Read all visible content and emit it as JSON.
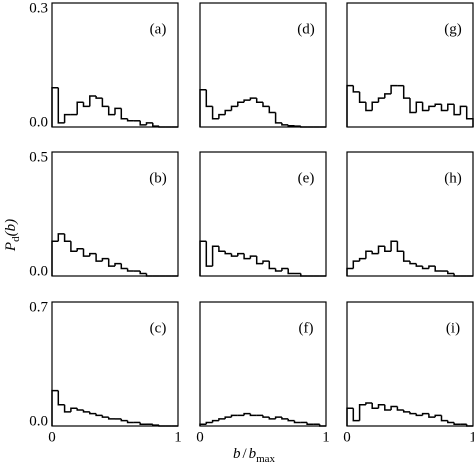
{
  "axis_labels": {
    "y": [
      "P",
      "d",
      "(b)"
    ],
    "x": [
      "b",
      "/",
      "b",
      "max"
    ]
  },
  "chart_data": [
    {
      "type": "histogram",
      "label": "(a)",
      "xlim": [
        0,
        1
      ],
      "ylim": [
        0,
        0.3
      ],
      "yticks": [
        {
          "value": 0,
          "label": "0.0"
        },
        0.3
      ],
      "bins": [
        0,
        0.05,
        0.1,
        0.15,
        0.2,
        0.25,
        0.3,
        0.35,
        0.4,
        0.45,
        0.5,
        0.55,
        0.6,
        0.65,
        0.7,
        0.75,
        0.8,
        0.85,
        0.9,
        0.95,
        1
      ],
      "values": [
        0.095,
        0.01,
        0.03,
        0.03,
        0.06,
        0.05,
        0.075,
        0.07,
        0.05,
        0.03,
        0.045,
        0.02,
        0.015,
        0.015,
        0.005,
        0.01,
        0.002,
        0,
        0,
        0
      ]
    },
    {
      "type": "histogram",
      "label": "(d)",
      "xlim": [
        0,
        1
      ],
      "ylim": [
        0,
        0.3
      ],
      "bins": [
        0,
        0.05,
        0.1,
        0.15,
        0.2,
        0.25,
        0.3,
        0.35,
        0.4,
        0.45,
        0.5,
        0.55,
        0.6,
        0.65,
        0.7,
        0.75,
        0.8,
        0.85,
        0.9,
        0.95,
        1
      ],
      "values": [
        0.09,
        0.05,
        0.02,
        0.03,
        0.04,
        0.05,
        0.06,
        0.065,
        0.07,
        0.06,
        0.05,
        0.035,
        0.01,
        0.005,
        0.003,
        0.002,
        0,
        0,
        0,
        0
      ]
    },
    {
      "type": "histogram",
      "label": "(g)",
      "xlim": [
        0,
        1
      ],
      "ylim": [
        0,
        0.3
      ],
      "bins": [
        0,
        0.05,
        0.1,
        0.15,
        0.2,
        0.25,
        0.3,
        0.35,
        0.4,
        0.45,
        0.5,
        0.55,
        0.6,
        0.65,
        0.7,
        0.75,
        0.8,
        0.85,
        0.9,
        0.95,
        1
      ],
      "values": [
        0.1,
        0.085,
        0.06,
        0.04,
        0.06,
        0.07,
        0.08,
        0.1,
        0.1,
        0.07,
        0.035,
        0.06,
        0.04,
        0.05,
        0.055,
        0.04,
        0.055,
        0.03,
        0.05,
        0.02
      ]
    },
    {
      "type": "histogram",
      "label": "(b)",
      "xlim": [
        0,
        1
      ],
      "ylim": [
        0,
        0.5
      ],
      "yticks": [
        {
          "value": 0,
          "label": "0.0"
        },
        0.5
      ],
      "bins": [
        0,
        0.05,
        0.1,
        0.15,
        0.2,
        0.25,
        0.3,
        0.35,
        0.4,
        0.45,
        0.5,
        0.55,
        0.6,
        0.65,
        0.7,
        0.75,
        0.8,
        0.85,
        0.9,
        0.95,
        1
      ],
      "values": [
        0.14,
        0.17,
        0.14,
        0.1,
        0.11,
        0.08,
        0.09,
        0.06,
        0.07,
        0.04,
        0.05,
        0.03,
        0.02,
        0.02,
        0.01,
        0,
        0,
        0,
        0,
        0
      ]
    },
    {
      "type": "histogram",
      "label": "(e)",
      "xlim": [
        0,
        1
      ],
      "ylim": [
        0,
        0.5
      ],
      "bins": [
        0,
        0.05,
        0.1,
        0.15,
        0.2,
        0.25,
        0.3,
        0.35,
        0.4,
        0.45,
        0.5,
        0.55,
        0.6,
        0.65,
        0.7,
        0.75,
        0.8,
        0.85,
        0.9,
        0.95,
        1
      ],
      "values": [
        0.14,
        0.04,
        0.12,
        0.1,
        0.09,
        0.08,
        0.09,
        0.07,
        0.08,
        0.05,
        0.06,
        0.03,
        0.02,
        0.03,
        0.01,
        0.01,
        0,
        0,
        0,
        0
      ]
    },
    {
      "type": "histogram",
      "label": "(h)",
      "xlim": [
        0,
        1
      ],
      "ylim": [
        0,
        0.5
      ],
      "bins": [
        0,
        0.05,
        0.1,
        0.15,
        0.2,
        0.25,
        0.3,
        0.35,
        0.4,
        0.45,
        0.5,
        0.55,
        0.6,
        0.65,
        0.7,
        0.75,
        0.8,
        0.85,
        0.9,
        0.95,
        1
      ],
      "values": [
        0.03,
        0.06,
        0.07,
        0.1,
        0.09,
        0.12,
        0.1,
        0.14,
        0.1,
        0.06,
        0.05,
        0.04,
        0.03,
        0.04,
        0.02,
        0.02,
        0.01,
        0,
        0,
        0
      ]
    },
    {
      "type": "histogram",
      "label": "(c)",
      "xlim": [
        0,
        1
      ],
      "ylim": [
        0,
        0.7
      ],
      "yticks": [
        {
          "value": 0,
          "label": "0.0"
        },
        0.7
      ],
      "xticks": [
        0,
        1
      ],
      "bins": [
        0,
        0.05,
        0.1,
        0.15,
        0.2,
        0.25,
        0.3,
        0.35,
        0.4,
        0.45,
        0.5,
        0.55,
        0.6,
        0.65,
        0.7,
        0.75,
        0.8,
        0.85,
        0.9,
        0.95,
        1
      ],
      "values": [
        0.2,
        0.12,
        0.08,
        0.1,
        0.09,
        0.08,
        0.07,
        0.06,
        0.05,
        0.04,
        0.04,
        0.03,
        0.02,
        0.02,
        0.01,
        0.01,
        0.005,
        0,
        0,
        0
      ]
    },
    {
      "type": "histogram",
      "label": "(f)",
      "xlim": [
        0,
        1
      ],
      "ylim": [
        0,
        0.7
      ],
      "xticks": [
        0,
        1
      ],
      "bins": [
        0,
        0.05,
        0.1,
        0.15,
        0.2,
        0.25,
        0.3,
        0.35,
        0.4,
        0.45,
        0.5,
        0.55,
        0.6,
        0.65,
        0.7,
        0.75,
        0.8,
        0.85,
        0.9,
        0.95,
        1
      ],
      "values": [
        0.01,
        0.02,
        0.03,
        0.04,
        0.05,
        0.06,
        0.06,
        0.07,
        0.06,
        0.06,
        0.05,
        0.04,
        0.05,
        0.04,
        0.03,
        0.02,
        0.02,
        0.01,
        0.01,
        0
      ]
    },
    {
      "type": "histogram",
      "label": "(i)",
      "xlim": [
        0,
        1
      ],
      "ylim": [
        0,
        0.7
      ],
      "xticks": [
        0,
        1
      ],
      "bins": [
        0,
        0.05,
        0.1,
        0.15,
        0.2,
        0.25,
        0.3,
        0.35,
        0.4,
        0.45,
        0.5,
        0.55,
        0.6,
        0.65,
        0.7,
        0.75,
        0.8,
        0.85,
        0.9,
        0.95,
        1
      ],
      "values": [
        0.1,
        0.03,
        0.12,
        0.13,
        0.1,
        0.12,
        0.09,
        0.11,
        0.09,
        0.08,
        0.07,
        0.06,
        0.07,
        0.05,
        0.06,
        0.03,
        0.02,
        0.01,
        0.01,
        0
      ]
    }
  ]
}
